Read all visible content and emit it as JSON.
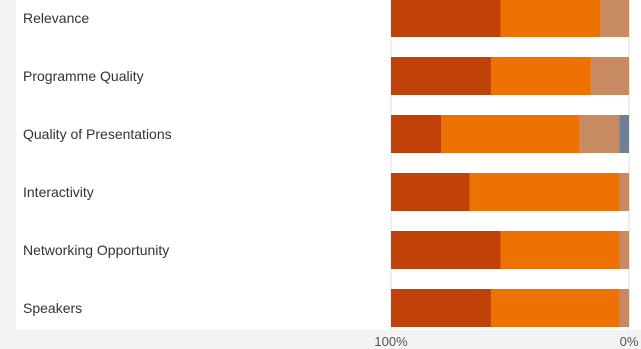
{
  "chart_data": {
    "type": "bar",
    "orientation": "horizontal",
    "stacked": true,
    "categories": [
      "Relevance",
      "Programme Quality",
      "Quality of Presentations",
      "Interactivity",
      "Networking Opportunity",
      "Speakers"
    ],
    "series": [
      {
        "color": "#c0410a",
        "values": [
          46,
          42,
          21,
          33,
          46,
          42
        ]
      },
      {
        "color": "#ee7203",
        "values": [
          42,
          42,
          58,
          63,
          50,
          54
        ]
      },
      {
        "color": "#c88a63",
        "values": [
          12,
          16,
          17,
          4,
          4,
          4
        ]
      },
      {
        "color": "#6e7f96",
        "values": [
          0,
          0,
          4,
          0,
          0,
          0
        ]
      }
    ],
    "xlim": [
      100,
      0
    ],
    "x_tick_labels": [
      "100%",
      "0%"
    ],
    "legend": "none",
    "grid": false
  }
}
